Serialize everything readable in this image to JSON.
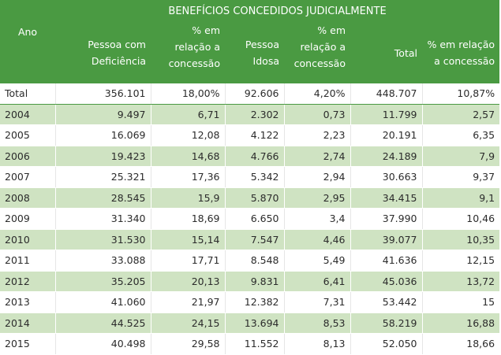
{
  "table": {
    "group_header": "BENEFÍCIOS CONCEDIDOS JUDICIALMENTE",
    "headers": {
      "ano": "Ano",
      "pcd": [
        "Pessoa com",
        "Deficiência"
      ],
      "pct_pcd": [
        "% em",
        "relação a",
        "concessão"
      ],
      "idosa": [
        "Pessoa",
        "Idosa"
      ],
      "pct_idosa": [
        "% em",
        "relação a",
        "concessão"
      ],
      "total": "Total",
      "pct_total": [
        "% em relação",
        "a concessão"
      ]
    },
    "rows": [
      [
        "Total",
        "356.101",
        "18,00%",
        "92.606",
        "4,20%",
        "448.707",
        "10,87%"
      ],
      [
        "2004",
        "9.497",
        "6,71",
        "2.302",
        "0,73",
        "11.799",
        "2,57"
      ],
      [
        "2005",
        "16.069",
        "12,08",
        "4.122",
        "2,23",
        "20.191",
        "6,35"
      ],
      [
        "2006",
        "19.423",
        "14,68",
        "4.766",
        "2,74",
        "24.189",
        "7,9"
      ],
      [
        "2007",
        "25.321",
        "17,36",
        "5.342",
        "2,94",
        "30.663",
        "9,37"
      ],
      [
        "2008",
        "28.545",
        "15,9",
        "5.870",
        "2,95",
        "34.415",
        "9,1"
      ],
      [
        "2009",
        "31.340",
        "18,69",
        "6.650",
        "3,4",
        "37.990",
        "10,46"
      ],
      [
        "2010",
        "31.530",
        "15,14",
        "7.547",
        "4,46",
        "39.077",
        "10,35"
      ],
      [
        "2011",
        "33.088",
        "17,71",
        "8.548",
        "5,49",
        "41.636",
        "12,15"
      ],
      [
        "2012",
        "35.205",
        "20,13",
        "9.831",
        "6,41",
        "45.036",
        "13,72"
      ],
      [
        "2013",
        "41.060",
        "21,97",
        "12.382",
        "7,31",
        "53.442",
        "15"
      ],
      [
        "2014",
        "44.525",
        "24,15",
        "13.694",
        "8,53",
        "58.219",
        "16,88"
      ],
      [
        "2015",
        "40.498",
        "29,58",
        "11.552",
        "8,13",
        "52.050",
        "18,66"
      ]
    ]
  }
}
